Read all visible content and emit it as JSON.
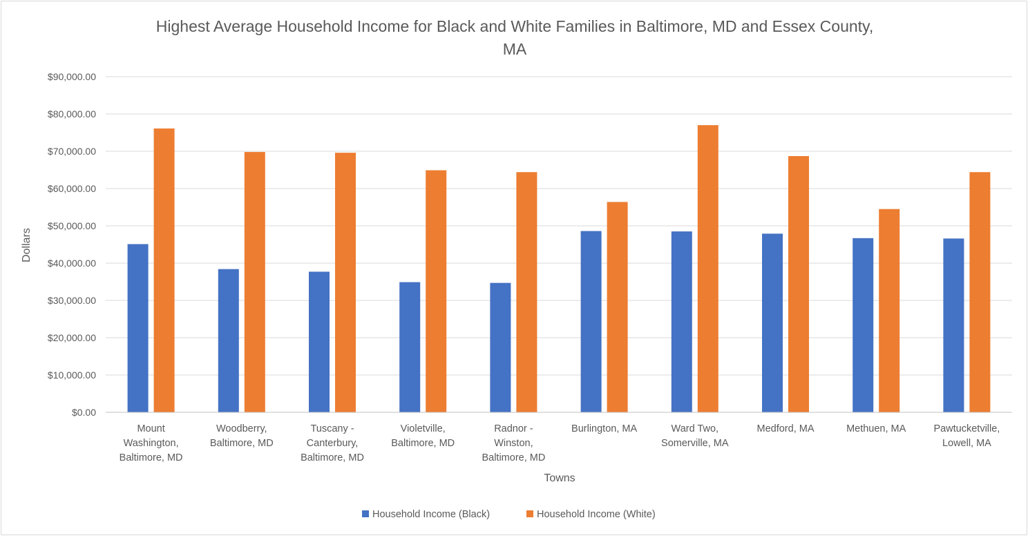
{
  "chart_data": {
    "type": "bar",
    "title_lines": [
      "Highest Average Household Income for Black and White Families in Baltimore, MD and Essex County,",
      "MA"
    ],
    "xlabel": "Towns",
    "ylabel": "Dollars",
    "ylim": [
      0,
      90000
    ],
    "yticks": [
      0,
      10000,
      20000,
      30000,
      40000,
      50000,
      60000,
      70000,
      80000,
      90000
    ],
    "ytick_labels": [
      "$0.00",
      "$10,000.00",
      "$20,000.00",
      "$30,000.00",
      "$40,000.00",
      "$50,000.00",
      "$60,000.00",
      "$70,000.00",
      "$80,000.00",
      "$90,000.00"
    ],
    "grid": true,
    "legend_position": "bottom",
    "categories": [
      [
        "Mount",
        "Washington,",
        "Baltimore, MD"
      ],
      [
        "Woodberry,",
        "Baltimore, MD"
      ],
      [
        "Tuscany -",
        "Canterbury,",
        "Baltimore, MD"
      ],
      [
        "Violetville,",
        "Baltimore, MD"
      ],
      [
        "Radnor -",
        "Winston,",
        "Baltimore, MD"
      ],
      [
        "Burlington, MA"
      ],
      [
        "Ward Two,",
        "Somerville, MA"
      ],
      [
        "Medford, MA"
      ],
      [
        "Methuen, MA"
      ],
      [
        "Pawtucketville,",
        "Lowell, MA"
      ]
    ],
    "series": [
      {
        "name": "Household Income (Black)",
        "color": "#4472c4",
        "values": [
          45100,
          38400,
          37700,
          34900,
          34700,
          48600,
          48500,
          47900,
          46700,
          46600
        ]
      },
      {
        "name": "Household Income (White)",
        "color": "#ed7d31",
        "values": [
          76100,
          69800,
          69600,
          64900,
          64400,
          56400,
          77000,
          68700,
          54500,
          64400
        ]
      }
    ]
  }
}
